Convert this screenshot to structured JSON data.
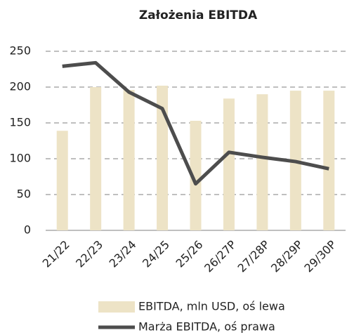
{
  "chart_data": {
    "type": "bar-line",
    "title": "Założenia EBITDA",
    "categories": [
      "21/22",
      "22/23",
      "23/24",
      "24/25",
      "25/26",
      "26/27P",
      "27/28P",
      "28/29P",
      "29/30P"
    ],
    "series": [
      {
        "name": "EBITDA, mln USD, oś lewa",
        "type": "bar",
        "color": "#ede3c6",
        "values": [
          139,
          200,
          196,
          202,
          153,
          184,
          190,
          195,
          195
        ]
      },
      {
        "name": "Marża EBITDA, oś prawa",
        "type": "line",
        "color": "#4d4d4d",
        "values": [
          229,
          234,
          193,
          170,
          65,
          109,
          102,
          96,
          86
        ]
      }
    ],
    "ylim": [
      0,
      250
    ],
    "yticks": [
      0,
      50,
      100,
      150,
      200,
      250
    ],
    "grid": true,
    "legend": "bottom"
  }
}
